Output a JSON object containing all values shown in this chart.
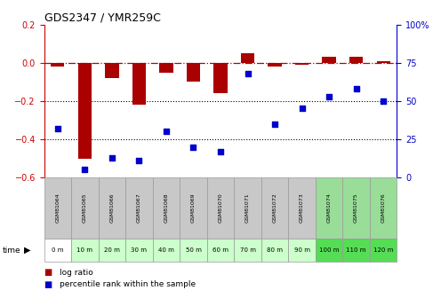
{
  "title": "GDS2347 / YMR259C",
  "samples": [
    "GSM81064",
    "GSM81065",
    "GSM81066",
    "GSM81067",
    "GSM81068",
    "GSM81069",
    "GSM81070",
    "GSM81071",
    "GSM81072",
    "GSM81073",
    "GSM81074",
    "GSM81075",
    "GSM81076"
  ],
  "time_labels": [
    "0 m",
    "10 m",
    "20 m",
    "30 m",
    "40 m",
    "50 m",
    "60 m",
    "70 m",
    "80 m",
    "90 m",
    "100 m",
    "110 m",
    "120 m"
  ],
  "log_ratio": [
    -0.02,
    -0.5,
    -0.08,
    -0.22,
    -0.05,
    -0.1,
    -0.16,
    0.05,
    -0.02,
    -0.01,
    0.03,
    0.03,
    0.01
  ],
  "percentile_rank": [
    32,
    5,
    13,
    11,
    30,
    20,
    17,
    68,
    35,
    45,
    53,
    58,
    50
  ],
  "ylim_left": [
    -0.6,
    0.2
  ],
  "ylim_right": [
    0,
    100
  ],
  "yticks_left": [
    -0.6,
    -0.4,
    -0.2,
    0.0,
    0.2
  ],
  "yticks_right": [
    0,
    25,
    50,
    75,
    100
  ],
  "bar_color": "#aa0000",
  "dot_color": "#0000cc",
  "hline_color": "#bb0000",
  "dotted_line_color": "#000000",
  "sample_bg_colors": [
    "#c8c8c8",
    "#c8c8c8",
    "#c8c8c8",
    "#c8c8c8",
    "#c8c8c8",
    "#c8c8c8",
    "#c8c8c8",
    "#c8c8c8",
    "#c8c8c8",
    "#c8c8c8",
    "#99dd99",
    "#99dd99",
    "#99dd99"
  ],
  "time_bg_colors": [
    "#ffffff",
    "#ccffcc",
    "#ccffcc",
    "#ccffcc",
    "#ccffcc",
    "#ccffcc",
    "#ccffcc",
    "#ccffcc",
    "#ccffcc",
    "#ccffcc",
    "#55dd55",
    "#55dd55",
    "#55dd55"
  ],
  "legend_log_ratio": "log ratio",
  "legend_pct": "percentile rank within the sample"
}
